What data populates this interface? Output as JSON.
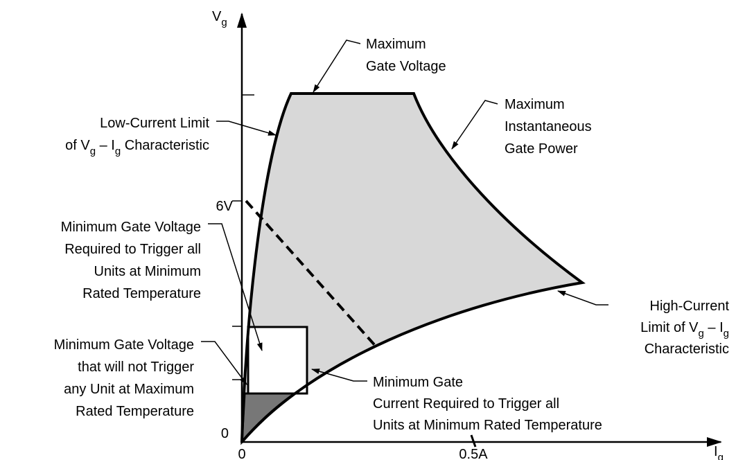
{
  "axes": {
    "y_label": [
      "V",
      {
        "sub": "g"
      }
    ],
    "x_label": [
      "I",
      {
        "sub": "g"
      }
    ],
    "y_ticks": [
      "0",
      "6V"
    ],
    "x_ticks": [
      "0",
      "0.5A"
    ]
  },
  "annotations": [
    {
      "lines": [
        [
          "Maximum"
        ],
        [
          "Gate Voltage"
        ]
      ]
    },
    {
      "lines": [
        [
          "Maximum"
        ],
        [
          "Instantaneous"
        ],
        [
          "Gate Power"
        ]
      ]
    },
    {
      "lines": [
        [
          "Low-Current Limit"
        ],
        [
          "of V",
          {
            "sub": "g"
          },
          " – I",
          {
            "sub": "g"
          },
          " Characteristic"
        ]
      ]
    },
    {
      "lines": [
        [
          "Minimum Gate Voltage"
        ],
        [
          "Required to Trigger all"
        ],
        [
          "Units at Minimum"
        ],
        [
          "Rated Temperature"
        ]
      ]
    },
    {
      "lines": [
        [
          "Minimum Gate Voltage"
        ],
        [
          "that will not Trigger"
        ],
        [
          "any Unit at Maximum"
        ],
        [
          "Rated Temperature"
        ]
      ]
    },
    {
      "lines": [
        [
          "High-Current"
        ],
        [
          "Limit of V",
          {
            "sub": "g"
          },
          " – I",
          {
            "sub": "g"
          }
        ],
        [
          "Characteristic"
        ]
      ]
    },
    {
      "lines": [
        [
          "Minimum Gate"
        ],
        [
          "Current Required to Trigger all"
        ],
        [
          "Units at Minimum Rated Temperature"
        ]
      ]
    }
  ]
}
